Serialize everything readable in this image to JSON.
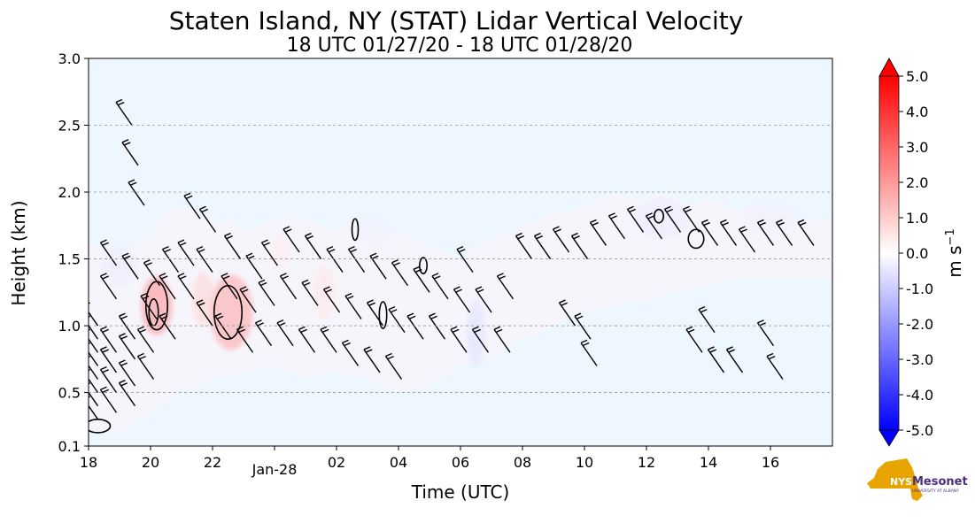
{
  "chart_data": {
    "type": "heatmap",
    "title": "Staten Island, NY (STAT) Lidar Vertical Velocity",
    "subtitle": "18 UTC 01/27/20 - 18 UTC 01/28/20",
    "xlabel": "Time (UTC)",
    "ylabel": "Height (km)",
    "x_ticks": [
      {
        "t": 0,
        "label": "18"
      },
      {
        "t": 2,
        "label": "20"
      },
      {
        "t": 4,
        "label": "22"
      },
      {
        "t": 6,
        "label": "Jan-28"
      },
      {
        "t": 8,
        "label": "02"
      },
      {
        "t": 10,
        "label": "04"
      },
      {
        "t": 12,
        "label": "06"
      },
      {
        "t": 14,
        "label": "08"
      },
      {
        "t": 16,
        "label": "10"
      },
      {
        "t": 18,
        "label": "12"
      },
      {
        "t": 20,
        "label": "14"
      },
      {
        "t": 22,
        "label": "16"
      }
    ],
    "xlim": [
      0,
      24
    ],
    "ylim": [
      0.1,
      3.0
    ],
    "y_ticks": [
      {
        "v": 0.1,
        "label": "0.1"
      },
      {
        "v": 0.5,
        "label": "0.5"
      },
      {
        "v": 1.0,
        "label": "1.0"
      },
      {
        "v": 1.5,
        "label": "1.5"
      },
      {
        "v": 2.0,
        "label": "2.0"
      },
      {
        "v": 2.5,
        "label": "2.5"
      },
      {
        "v": 3.0,
        "label": "3.0"
      }
    ],
    "grid": "y-dashed",
    "colorbar": {
      "label": "m s",
      "label_exp": "−1",
      "min": -5.0,
      "max": 5.0,
      "ticks": [
        "5.0",
        "4.0",
        "3.0",
        "2.0",
        "1.0",
        "0.0",
        "-1.0",
        "-2.0",
        "-3.0",
        "-4.0",
        "-5.0"
      ],
      "colors": {
        "neg": "#0000ff",
        "zero": "#ffffff",
        "pos": "#ff0000",
        "background": "#eef6ff"
      }
    },
    "data_top_km": [
      [
        0,
        1.6
      ],
      [
        0.5,
        1.6
      ],
      [
        1,
        1.55
      ],
      [
        1.5,
        1.6
      ],
      [
        2,
        1.7
      ],
      [
        2.5,
        1.85
      ],
      [
        3,
        1.9
      ],
      [
        3.5,
        1.85
      ],
      [
        4,
        1.75
      ],
      [
        4.5,
        1.8
      ],
      [
        5,
        1.7
      ],
      [
        5.5,
        1.75
      ],
      [
        6,
        1.8
      ],
      [
        6.5,
        1.85
      ],
      [
        7,
        1.8
      ],
      [
        7.5,
        1.75
      ],
      [
        8,
        1.7
      ],
      [
        8.5,
        1.8
      ],
      [
        9,
        1.7
      ],
      [
        9.5,
        1.75
      ],
      [
        10,
        1.7
      ],
      [
        10.5,
        1.65
      ],
      [
        11,
        1.6
      ],
      [
        11.5,
        1.55
      ],
      [
        12,
        1.5
      ],
      [
        12.5,
        1.6
      ],
      [
        13,
        1.65
      ],
      [
        13.5,
        1.7
      ],
      [
        14,
        1.75
      ],
      [
        14.5,
        1.8
      ],
      [
        15,
        1.85
      ],
      [
        15.5,
        1.85
      ],
      [
        16,
        1.9
      ],
      [
        16.5,
        1.95
      ],
      [
        17,
        2.0
      ],
      [
        17.5,
        1.95
      ],
      [
        18,
        1.95
      ],
      [
        18.5,
        2.0
      ],
      [
        19,
        1.95
      ],
      [
        19.5,
        1.9
      ],
      [
        20,
        1.95
      ],
      [
        20.5,
        1.9
      ],
      [
        21,
        1.85
      ],
      [
        21.5,
        1.9
      ],
      [
        22,
        1.85
      ],
      [
        22.5,
        1.85
      ],
      [
        23,
        1.8
      ],
      [
        23.5,
        1.8
      ],
      [
        24,
        1.8
      ]
    ],
    "data_bottom_km": [
      [
        0,
        0.2
      ],
      [
        1,
        0.2
      ],
      [
        2,
        0.35
      ],
      [
        3,
        0.5
      ],
      [
        4,
        0.6
      ],
      [
        5,
        0.65
      ],
      [
        6,
        0.7
      ],
      [
        7,
        0.6
      ],
      [
        8,
        0.65
      ],
      [
        9,
        0.6
      ],
      [
        10,
        0.5
      ],
      [
        11,
        0.55
      ],
      [
        12,
        0.7
      ],
      [
        13,
        0.75
      ],
      [
        14,
        0.9
      ],
      [
        15,
        1.0
      ],
      [
        16,
        1.1
      ],
      [
        17,
        1.15
      ],
      [
        18,
        1.2
      ],
      [
        19,
        1.25
      ],
      [
        20,
        1.3
      ],
      [
        21,
        1.35
      ],
      [
        22,
        1.35
      ],
      [
        23,
        1.35
      ],
      [
        24,
        1.35
      ]
    ],
    "velocity_blobs": [
      {
        "t": 2.2,
        "h": 1.15,
        "rt": 0.5,
        "rh": 0.22,
        "v": 2.2
      },
      {
        "t": 4.6,
        "h": 1.1,
        "rt": 0.7,
        "rh": 0.28,
        "v": 1.8
      },
      {
        "t": 3.7,
        "h": 1.2,
        "rt": 0.35,
        "rh": 0.2,
        "v": 0.9
      },
      {
        "t": 7.6,
        "h": 1.25,
        "rt": 0.35,
        "rh": 0.2,
        "v": 0.5
      },
      {
        "t": 6.2,
        "h": 1.55,
        "rt": 0.3,
        "rh": 0.12,
        "v": 0.4
      },
      {
        "t": 12.5,
        "h": 0.95,
        "rt": 0.3,
        "rh": 0.25,
        "v": -0.6
      },
      {
        "t": 1.0,
        "h": 1.45,
        "rt": 0.6,
        "rh": 0.15,
        "v": -0.4
      },
      {
        "t": 18.5,
        "h": 1.8,
        "rt": 0.9,
        "rh": 0.15,
        "v": -0.4
      },
      {
        "t": 22.0,
        "h": 1.8,
        "rt": 0.9,
        "rh": 0.12,
        "v": -0.3
      },
      {
        "t": 9.2,
        "h": 1.7,
        "rt": 0.6,
        "rh": 0.1,
        "v": -0.3
      }
    ],
    "contours": [
      {
        "t": 2.2,
        "h": 1.15,
        "rt": 0.35,
        "rh": 0.18
      },
      {
        "t": 2.1,
        "h": 1.1,
        "rt": 0.15,
        "rh": 0.1
      },
      {
        "t": 4.5,
        "h": 1.1,
        "rt": 0.45,
        "rh": 0.2
      },
      {
        "t": 9.5,
        "h": 1.08,
        "rt": 0.12,
        "rh": 0.1
      },
      {
        "t": 10.8,
        "h": 1.45,
        "rt": 0.12,
        "rh": 0.06
      },
      {
        "t": 8.6,
        "h": 1.72,
        "rt": 0.1,
        "rh": 0.08
      },
      {
        "t": 19.6,
        "h": 1.65,
        "rt": 0.25,
        "rh": 0.07
      },
      {
        "t": 18.4,
        "h": 1.82,
        "rt": 0.15,
        "rh": 0.05
      },
      {
        "t": 0.3,
        "h": 0.25,
        "rt": 0.4,
        "rh": 0.05
      }
    ],
    "wind_barbs": [
      {
        "t": 0.3,
        "h": 0.3
      },
      {
        "t": 0.3,
        "h": 0.4
      },
      {
        "t": 0.3,
        "h": 0.5
      },
      {
        "t": 0.3,
        "h": 0.6
      },
      {
        "t": 0.3,
        "h": 0.7
      },
      {
        "t": 0.3,
        "h": 0.8
      },
      {
        "t": 0.3,
        "h": 0.9
      },
      {
        "t": 0.3,
        "h": 1.0
      },
      {
        "t": 0.9,
        "h": 0.35
      },
      {
        "t": 0.9,
        "h": 0.5
      },
      {
        "t": 0.9,
        "h": 0.65
      },
      {
        "t": 0.9,
        "h": 0.8
      },
      {
        "t": 0.9,
        "h": 1.2
      },
      {
        "t": 0.9,
        "h": 1.45
      },
      {
        "t": 1.5,
        "h": 0.4
      },
      {
        "t": 1.5,
        "h": 0.55
      },
      {
        "t": 1.5,
        "h": 0.75
      },
      {
        "t": 1.5,
        "h": 0.9
      },
      {
        "t": 1.6,
        "h": 1.35
      },
      {
        "t": 1.4,
        "h": 2.5
      },
      {
        "t": 1.6,
        "h": 2.2
      },
      {
        "t": 1.8,
        "h": 1.9
      },
      {
        "t": 2.1,
        "h": 0.6
      },
      {
        "t": 2.1,
        "h": 0.8
      },
      {
        "t": 2.2,
        "h": 1.05
      },
      {
        "t": 2.3,
        "h": 1.3
      },
      {
        "t": 2.8,
        "h": 0.9
      },
      {
        "t": 2.8,
        "h": 1.2
      },
      {
        "t": 2.9,
        "h": 1.4
      },
      {
        "t": 3.4,
        "h": 1.2
      },
      {
        "t": 3.4,
        "h": 1.45
      },
      {
        "t": 3.6,
        "h": 1.8
      },
      {
        "t": 4.0,
        "h": 1.0
      },
      {
        "t": 4.0,
        "h": 1.4
      },
      {
        "t": 4.1,
        "h": 1.7
      },
      {
        "t": 4.6,
        "h": 0.9
      },
      {
        "t": 4.8,
        "h": 1.2
      },
      {
        "t": 4.9,
        "h": 1.5
      },
      {
        "t": 5.3,
        "h": 0.8
      },
      {
        "t": 5.4,
        "h": 1.1
      },
      {
        "t": 5.6,
        "h": 1.35
      },
      {
        "t": 5.9,
        "h": 0.85
      },
      {
        "t": 6.0,
        "h": 1.15
      },
      {
        "t": 6.1,
        "h": 1.45
      },
      {
        "t": 6.6,
        "h": 0.85
      },
      {
        "t": 6.7,
        "h": 1.2
      },
      {
        "t": 6.8,
        "h": 1.55
      },
      {
        "t": 7.3,
        "h": 0.8
      },
      {
        "t": 7.4,
        "h": 1.15
      },
      {
        "t": 7.5,
        "h": 1.5
      },
      {
        "t": 8.0,
        "h": 0.8
      },
      {
        "t": 8.1,
        "h": 1.1
      },
      {
        "t": 8.2,
        "h": 1.4
      },
      {
        "t": 8.7,
        "h": 0.7
      },
      {
        "t": 8.8,
        "h": 1.05
      },
      {
        "t": 8.9,
        "h": 1.4
      },
      {
        "t": 9.4,
        "h": 0.65
      },
      {
        "t": 9.5,
        "h": 1.0
      },
      {
        "t": 9.6,
        "h": 1.35
      },
      {
        "t": 10.1,
        "h": 0.6
      },
      {
        "t": 10.2,
        "h": 0.95
      },
      {
        "t": 10.3,
        "h": 1.3
      },
      {
        "t": 10.8,
        "h": 0.9
      },
      {
        "t": 11.0,
        "h": 1.25
      },
      {
        "t": 11.5,
        "h": 0.9
      },
      {
        "t": 11.6,
        "h": 1.2
      },
      {
        "t": 12.2,
        "h": 0.8
      },
      {
        "t": 12.3,
        "h": 1.1
      },
      {
        "t": 12.4,
        "h": 1.4
      },
      {
        "t": 12.9,
        "h": 0.8
      },
      {
        "t": 13.0,
        "h": 1.1
      },
      {
        "t": 13.6,
        "h": 0.8
      },
      {
        "t": 13.7,
        "h": 1.2
      },
      {
        "t": 14.3,
        "h": 1.5
      },
      {
        "t": 14.9,
        "h": 1.5
      },
      {
        "t": 15.5,
        "h": 1.55
      },
      {
        "t": 16.1,
        "h": 1.5
      },
      {
        "t": 16.7,
        "h": 1.6
      },
      {
        "t": 17.3,
        "h": 1.65
      },
      {
        "t": 17.9,
        "h": 1.7
      },
      {
        "t": 18.5,
        "h": 1.65
      },
      {
        "t": 19.1,
        "h": 1.7
      },
      {
        "t": 19.7,
        "h": 1.7
      },
      {
        "t": 20.3,
        "h": 1.6
      },
      {
        "t": 20.9,
        "h": 1.6
      },
      {
        "t": 21.5,
        "h": 1.55
      },
      {
        "t": 22.1,
        "h": 1.6
      },
      {
        "t": 22.7,
        "h": 1.6
      },
      {
        "t": 23.4,
        "h": 1.6
      },
      {
        "t": 15.7,
        "h": 1.0
      },
      {
        "t": 16.2,
        "h": 0.9
      },
      {
        "t": 16.4,
        "h": 0.7
      },
      {
        "t": 19.8,
        "h": 0.8
      },
      {
        "t": 20.2,
        "h": 0.95
      },
      {
        "t": 20.5,
        "h": 0.65
      },
      {
        "t": 21.1,
        "h": 0.65
      },
      {
        "t": 22.1,
        "h": 0.85
      },
      {
        "t": 22.4,
        "h": 0.6
      }
    ]
  },
  "logo": {
    "mark": "NYS",
    "brand": "Mesonet",
    "sub": "UNIVERSITY AT ALBANY",
    "colors": {
      "state": "#e8a400",
      "text": "#4b2e83"
    }
  }
}
